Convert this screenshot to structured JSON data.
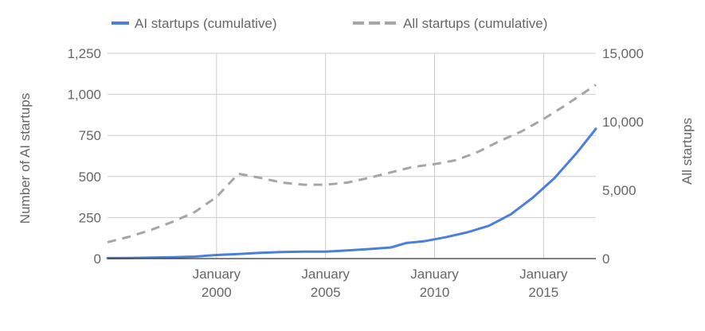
{
  "chart_data": {
    "type": "line",
    "legend": {
      "position": "top",
      "entries": [
        {
          "label": "AI startups (cumulative)",
          "style": "solid",
          "color": "#4a80dc"
        },
        {
          "label": "All startups (cumulative)",
          "style": "dashed",
          "color": "#a6a6a6"
        }
      ]
    },
    "x_axis": {
      "range": [
        1995.0,
        2017.4
      ],
      "ticks": [
        {
          "value": 2000,
          "line1": "January",
          "line2": "2000"
        },
        {
          "value": 2005,
          "line1": "January",
          "line2": "2005"
        },
        {
          "value": 2010,
          "line1": "January",
          "line2": "2010"
        },
        {
          "value": 2015,
          "line1": "January",
          "line2": "2015"
        }
      ]
    },
    "y_left": {
      "label": "Number of AI startups",
      "range": [
        0,
        1250
      ],
      "ticks": [
        0,
        250,
        500,
        750,
        1000,
        1250
      ],
      "tick_labels": [
        "0",
        "250",
        "500",
        "750",
        "1,000",
        "1,250"
      ]
    },
    "y_right": {
      "label": "All startups",
      "range": [
        0,
        15000
      ],
      "ticks": [
        0,
        5000,
        10000,
        15000
      ],
      "tick_labels": [
        "0",
        "5,000",
        "10,000",
        "15,000"
      ]
    },
    "grid": {
      "horizontal": true,
      "vertical": true
    },
    "series": [
      {
        "name": "AI startups (cumulative)",
        "axis": "left",
        "color": "#4a80dc",
        "style": "solid",
        "x": [
          1995.0,
          1996.0,
          1997.0,
          1998.0,
          1999.0,
          2000.0,
          2001.0,
          2002.0,
          2003.0,
          2004.0,
          2005.0,
          2006.0,
          2007.0,
          2008.0,
          2008.7,
          2009.5,
          2010.5,
          2011.5,
          2012.5,
          2013.5,
          2014.5,
          2015.5,
          2016.5,
          2017.4
        ],
        "y": [
          3,
          4,
          6,
          8,
          12,
          22,
          28,
          35,
          40,
          42,
          42,
          50,
          58,
          68,
          95,
          105,
          130,
          160,
          200,
          270,
          370,
          490,
          640,
          790
        ]
      },
      {
        "name": "All startups (cumulative)",
        "axis": "right",
        "color": "#a6a6a6",
        "style": "dashed",
        "x": [
          1995.0,
          1996.0,
          1997.0,
          1998.0,
          1999.0,
          2000.0,
          2001.0,
          2002.0,
          2003.0,
          2004.0,
          2005.0,
          2006.0,
          2007.0,
          2008.0,
          2009.0,
          2010.0,
          2011.0,
          2012.0,
          2013.0,
          2014.0,
          2015.0,
          2016.0,
          2017.4
        ],
        "y": [
          1200,
          1600,
          2100,
          2700,
          3400,
          4500,
          6200,
          5900,
          5550,
          5400,
          5400,
          5550,
          5900,
          6300,
          6700,
          6900,
          7200,
          7800,
          8600,
          9300,
          10200,
          11200,
          12700
        ]
      }
    ]
  }
}
